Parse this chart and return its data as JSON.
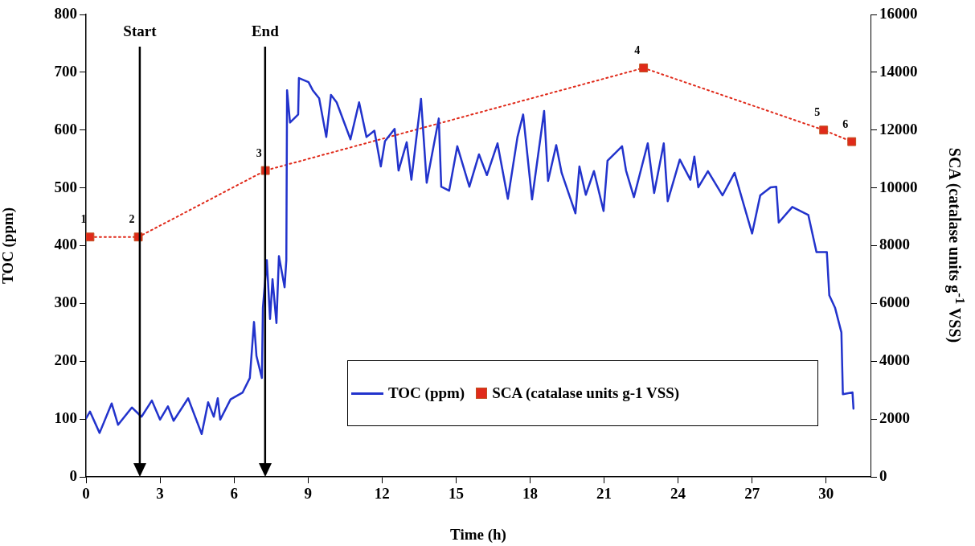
{
  "chart_data": {
    "type": "line",
    "xlabel": "Time (h)",
    "ylabel": "TOC (ppm)",
    "y2label": "SCA (catalase units g$^{-1}$ VSS)",
    "xlim": [
      0,
      31.8
    ],
    "xticks": [
      0,
      3,
      6,
      9,
      12,
      15,
      18,
      21,
      24,
      27,
      30
    ],
    "ylim": [
      0,
      800
    ],
    "yticks": [
      0,
      100,
      200,
      300,
      400,
      500,
      600,
      700,
      800
    ],
    "y2lim": [
      0,
      16000
    ],
    "y2ticks": [
      0,
      2000,
      4000,
      6000,
      8000,
      10000,
      12000,
      14000,
      16000
    ],
    "grid": false,
    "legend": "bottom right",
    "series": [
      {
        "name": "TOC (ppm)",
        "color": "#2233cc",
        "marker": "none",
        "line_style": "solid",
        "x": [
          0,
          0.16,
          0.55,
          1.04,
          1.3,
          1.86,
          2.25,
          2.67,
          3.0,
          3.32,
          3.55,
          4.14,
          4.69,
          4.95,
          5.18,
          5.34,
          5.44,
          5.86,
          6.35,
          6.64,
          6.81,
          6.91,
          7.13,
          7.17,
          7.33,
          7.46,
          7.56,
          7.72,
          7.82,
          8.05,
          8.12,
          8.15,
          8.27,
          8.6,
          8.63,
          9.02,
          9.19,
          9.45,
          9.74,
          9.93,
          10.16,
          10.72,
          11.07,
          11.37,
          11.69,
          11.95,
          12.12,
          12.51,
          12.67,
          13.0,
          13.19,
          13.58,
          13.81,
          14.3,
          14.4,
          14.72,
          15.05,
          15.54,
          15.93,
          16.25,
          16.68,
          17.1,
          17.49,
          17.72,
          18.08,
          18.57,
          18.73,
          19.06,
          19.28,
          19.84,
          20.0,
          20.26,
          20.59,
          20.98,
          21.14,
          21.73,
          21.89,
          22.21,
          22.77,
          23.03,
          23.42,
          23.58,
          24.07,
          24.5,
          24.66,
          24.82,
          25.21,
          25.8,
          26.29,
          27.0,
          27.33,
          27.75,
          27.98,
          28.08,
          28.63,
          29.28,
          29.61,
          30.03,
          30.13,
          30.36,
          30.62,
          30.68,
          31.07,
          31.11
        ],
        "values": [
          101,
          113,
          76,
          127,
          90,
          120,
          104,
          132,
          99,
          122,
          97,
          136,
          74,
          129,
          104,
          136,
          99,
          134,
          146,
          171,
          268,
          209,
          171,
          292,
          375,
          273,
          342,
          266,
          382,
          328,
          375,
          669,
          613,
          627,
          690,
          683,
          669,
          655,
          588,
          661,
          648,
          584,
          648,
          588,
          599,
          537,
          581,
          602,
          530,
          579,
          514,
          654,
          509,
          620,
          502,
          495,
          572,
          502,
          558,
          522,
          577,
          481,
          588,
          627,
          480,
          633,
          512,
          574,
          526,
          456,
          537,
          488,
          529,
          460,
          547,
          572,
          530,
          484,
          577,
          491,
          577,
          477,
          549,
          514,
          554,
          501,
          529,
          487,
          526,
          421,
          487,
          501,
          502,
          440,
          467,
          453,
          389,
          389,
          314,
          293,
          250,
          143,
          146,
          118
        ]
      },
      {
        "name": "SCA (catalase units g-1 VSS)",
        "axis": "y2",
        "color": "#e02a1a",
        "marker": "square",
        "line_style": "dotted",
        "x": [
          0.16,
          2.12,
          7.27,
          22.6,
          29.9,
          31.04
        ],
        "values": [
          8300,
          8300,
          10600,
          14150,
          12000,
          11600
        ]
      }
    ],
    "ref_lines": [
      {
        "axis": "x",
        "value": 2.18,
        "label": "Start",
        "color": "#000000"
      },
      {
        "axis": "x",
        "value": 7.26,
        "label": "End",
        "color": "#000000"
      }
    ],
    "annotations": [
      "1",
      "2",
      "3",
      "4",
      "5",
      "6"
    ]
  }
}
